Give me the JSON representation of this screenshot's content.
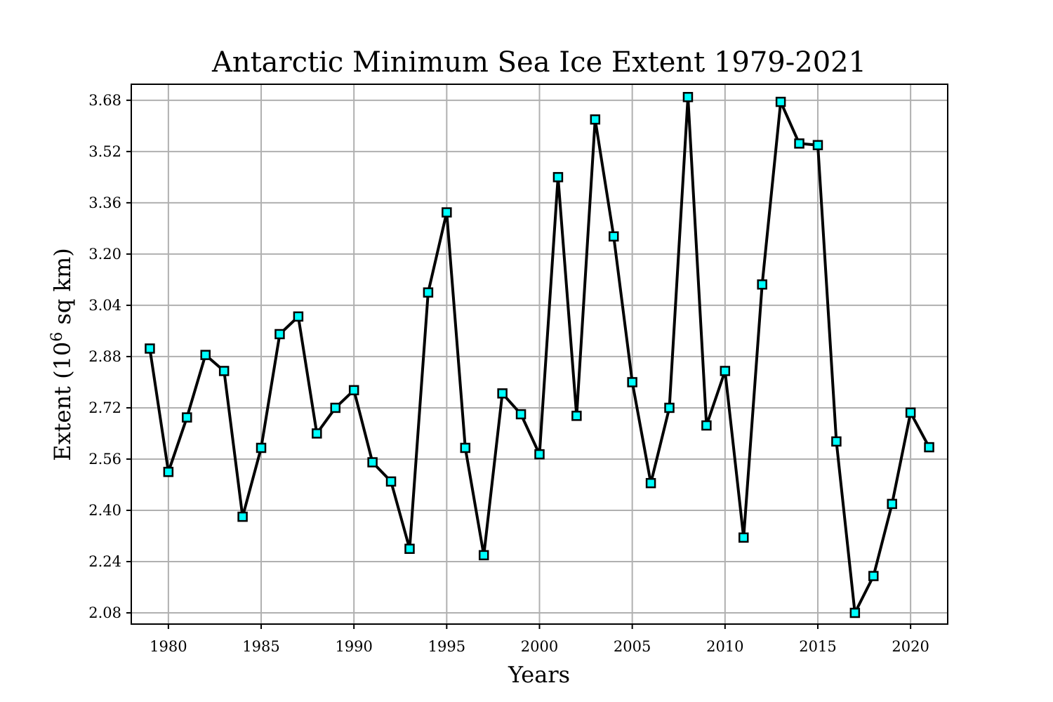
{
  "chart_data": {
    "type": "line",
    "title": "Antarctic Minimum Sea Ice Extent 1979-2021",
    "xlabel": "Years",
    "ylabel_main": "Extent (10",
    "ylabel_sup": "6",
    "ylabel_tail": " sq km)",
    "xlim": [
      1978,
      2022
    ],
    "ylim": [
      2.045,
      3.73
    ],
    "xticks": [
      1980,
      1985,
      1990,
      1995,
      2000,
      2005,
      2010,
      2015,
      2020
    ],
    "xtick_labels": [
      "1980",
      "1985",
      "1990",
      "1995",
      "2000",
      "2005",
      "2010",
      "2015",
      "2020"
    ],
    "yticks": [
      2.08,
      2.24,
      2.4,
      2.56,
      2.72,
      2.88,
      3.04,
      3.2,
      3.36,
      3.52,
      3.68
    ],
    "ytick_labels": [
      "2.08",
      "2.24",
      "2.40",
      "2.56",
      "2.72",
      "2.88",
      "3.04",
      "3.20",
      "3.36",
      "3.52",
      "3.68"
    ],
    "grid": true,
    "line_color": "#000000",
    "marker_color": "#00ffff",
    "marker": "square",
    "x": [
      1979,
      1980,
      1981,
      1982,
      1983,
      1984,
      1985,
      1986,
      1987,
      1988,
      1989,
      1990,
      1991,
      1992,
      1993,
      1994,
      1995,
      1996,
      1997,
      1998,
      1999,
      2000,
      2001,
      2002,
      2003,
      2004,
      2005,
      2006,
      2007,
      2008,
      2009,
      2010,
      2011,
      2012,
      2013,
      2014,
      2015,
      2016,
      2017,
      2018,
      2019,
      2020,
      2021
    ],
    "values": [
      2.905,
      2.52,
      2.69,
      2.885,
      2.835,
      2.38,
      2.595,
      2.95,
      3.005,
      2.64,
      2.72,
      2.775,
      2.55,
      2.49,
      2.28,
      3.08,
      3.33,
      2.595,
      2.26,
      2.765,
      2.7,
      2.575,
      3.44,
      2.695,
      3.62,
      3.255,
      2.8,
      2.485,
      2.72,
      3.69,
      2.665,
      2.835,
      2.315,
      3.105,
      3.675,
      3.545,
      3.54,
      2.615,
      2.08,
      2.195,
      2.42,
      2.705,
      2.597
    ]
  }
}
